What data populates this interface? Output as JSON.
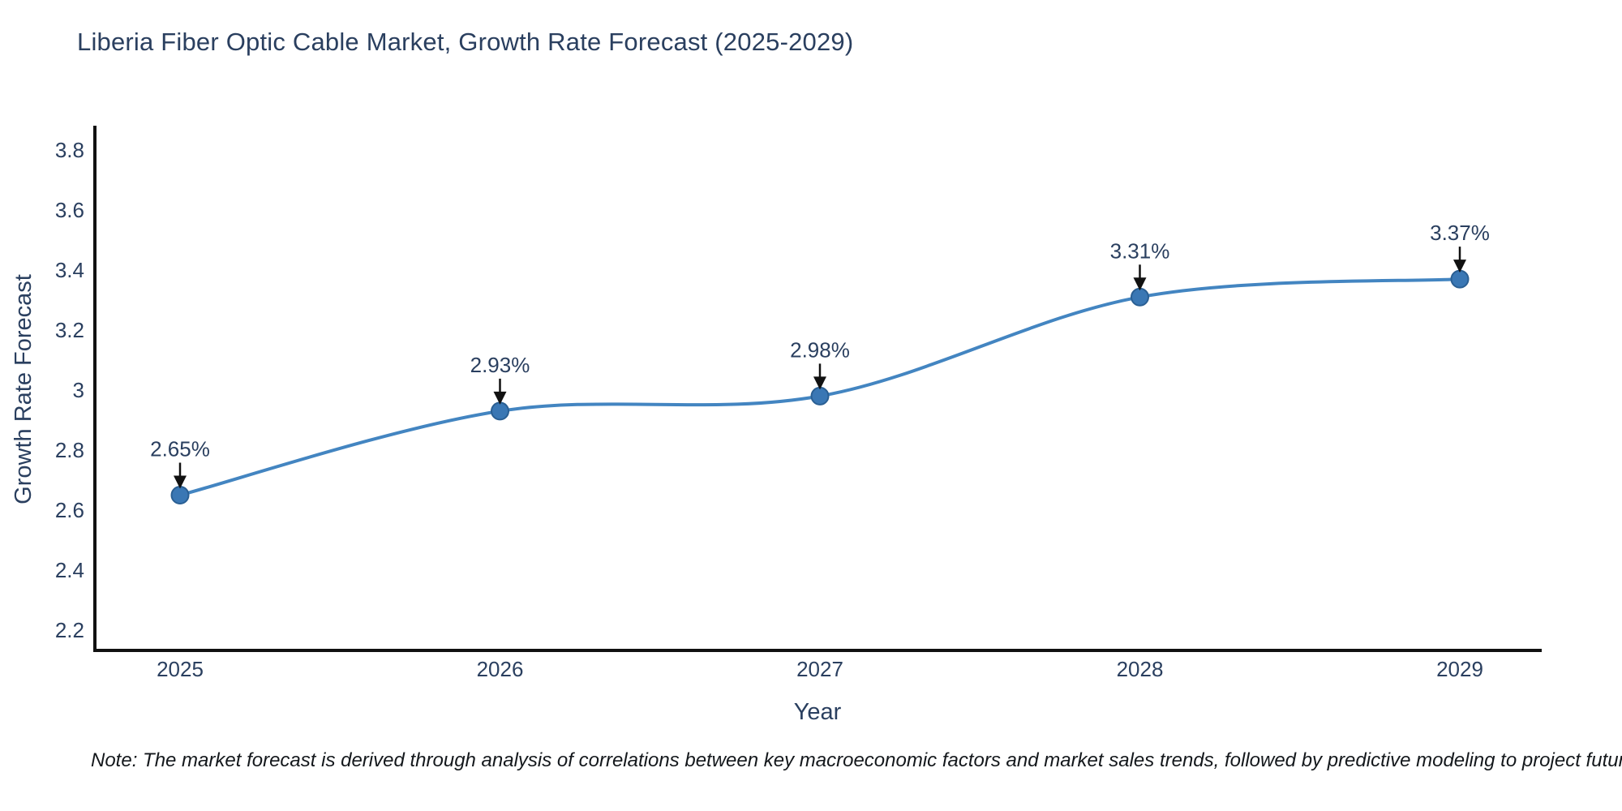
{
  "chart_data": {
    "type": "line",
    "title": "Liberia Fiber Optic Cable Market, Growth Rate Forecast (2025-2029)",
    "xlabel": "Year",
    "ylabel": "Growth Rate Forecast",
    "x": [
      2025,
      2026,
      2027,
      2028,
      2029
    ],
    "y": [
      2.65,
      2.93,
      2.98,
      3.31,
      3.37
    ],
    "point_labels": [
      "2.65%",
      "2.93%",
      "2.98%",
      "3.31%",
      "3.37%"
    ],
    "x_ticks": [
      2025,
      2026,
      2027,
      2028,
      2029
    ],
    "y_ticks": [
      2.2,
      2.4,
      2.6,
      2.8,
      3,
      3.2,
      3.4,
      3.6,
      3.8
    ],
    "ylim": [
      2.13,
      3.88
    ],
    "line_shape": "spline",
    "grid": false,
    "legend": false,
    "annotation_style": "value label with downward arrow to marker",
    "colors": {
      "line": "#4385c1",
      "marker_fill": "#3a77b4",
      "marker_edge": "#2a5f93",
      "axis_line": "#111111",
      "text": "#2a3f5f",
      "annotation_arrow": "#111111",
      "note_text": "#14181c",
      "background": "#ffffff"
    }
  },
  "note": {
    "text": "Note: The market forecast is derived through analysis of correlations between key macroeconomic factors and market sales trends, followed by predictive modeling to project future sales"
  }
}
